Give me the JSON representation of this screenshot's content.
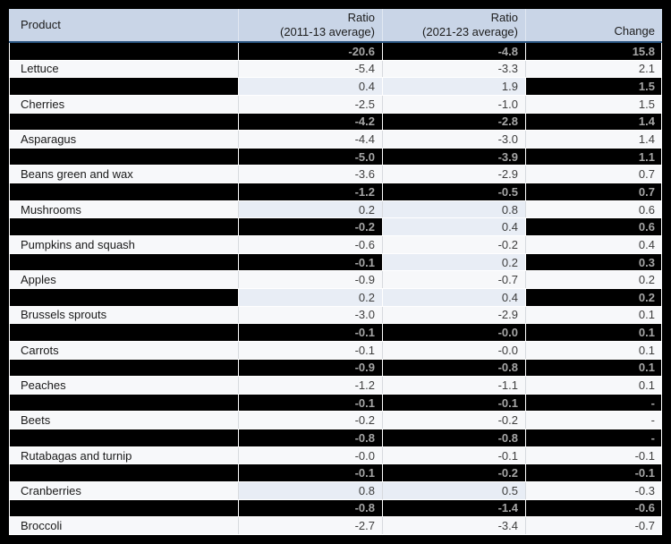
{
  "colors": {
    "page_bg": "#000000",
    "header_bg": "#c9d5e7",
    "header_border": "#2a5480",
    "header_text": "#1c1c1c",
    "row_bg": "#f7f8fa",
    "highlight_bg": "#e8edf5",
    "dark_row_bg": "#000000",
    "dark_row_text": "#a6a6a6",
    "text": "#1a1a1a",
    "num_text": "#3e3e3e",
    "separator": "#d7dade"
  },
  "header": {
    "product_label": "Product",
    "ratio1_label": "Ratio",
    "ratio1_sub": "(2011-13 average)",
    "ratio2_label": "Ratio",
    "ratio2_sub": "(2021-23 average)",
    "change_label": "Change"
  },
  "chart_data": {
    "type": "table",
    "columns": [
      "Product",
      "Ratio (2011-13 average)",
      "Ratio (2021-23 average)",
      "Change"
    ],
    "notes": "Rows with empty product are blacked-out/redacted rows; positive ratio values have a light-blue cell highlight",
    "rows": [
      {
        "product": "",
        "redacted": true,
        "ratio_2011_13": "-20.6",
        "ratio_2021_23": "-4.8",
        "change": "15.8"
      },
      {
        "product": "Lettuce",
        "redacted": false,
        "ratio_2011_13": "-5.4",
        "ratio_2021_23": "-3.3",
        "change": "2.1"
      },
      {
        "product": "",
        "redacted": true,
        "ratio_2011_13": "0.4",
        "ratio_2021_23": "1.9",
        "change": "1.5"
      },
      {
        "product": "Cherries",
        "redacted": false,
        "ratio_2011_13": "-2.5",
        "ratio_2021_23": "-1.0",
        "change": "1.5"
      },
      {
        "product": "",
        "redacted": true,
        "ratio_2011_13": "-4.2",
        "ratio_2021_23": "-2.8",
        "change": "1.4"
      },
      {
        "product": "Asparagus",
        "redacted": false,
        "ratio_2011_13": "-4.4",
        "ratio_2021_23": "-3.0",
        "change": "1.4"
      },
      {
        "product": "",
        "redacted": true,
        "ratio_2011_13": "-5.0",
        "ratio_2021_23": "-3.9",
        "change": "1.1"
      },
      {
        "product": "Beans green and wax",
        "redacted": false,
        "ratio_2011_13": "-3.6",
        "ratio_2021_23": "-2.9",
        "change": "0.7"
      },
      {
        "product": "",
        "redacted": true,
        "ratio_2011_13": "-1.2",
        "ratio_2021_23": "-0.5",
        "change": "0.7"
      },
      {
        "product": "Mushrooms",
        "redacted": false,
        "ratio_2011_13": "0.2",
        "ratio_2021_23": "0.8",
        "change": "0.6"
      },
      {
        "product": "",
        "redacted": true,
        "ratio_2011_13": "-0.2",
        "ratio_2021_23": "0.4",
        "change": "0.6"
      },
      {
        "product": "Pumpkins and squash",
        "redacted": false,
        "ratio_2011_13": "-0.6",
        "ratio_2021_23": "-0.2",
        "change": "0.4"
      },
      {
        "product": "",
        "redacted": true,
        "ratio_2011_13": "-0.1",
        "ratio_2021_23": "0.2",
        "change": "0.3"
      },
      {
        "product": "Apples",
        "redacted": false,
        "ratio_2011_13": "-0.9",
        "ratio_2021_23": "-0.7",
        "change": "0.2"
      },
      {
        "product": "",
        "redacted": true,
        "ratio_2011_13": "0.2",
        "ratio_2021_23": "0.4",
        "change": "0.2"
      },
      {
        "product": "Brussels sprouts",
        "redacted": false,
        "ratio_2011_13": "-3.0",
        "ratio_2021_23": "-2.9",
        "change": "0.1"
      },
      {
        "product": "",
        "redacted": true,
        "ratio_2011_13": "-0.1",
        "ratio_2021_23": "-0.0",
        "change": "0.1"
      },
      {
        "product": "Carrots",
        "redacted": false,
        "ratio_2011_13": "-0.1",
        "ratio_2021_23": "-0.0",
        "change": "0.1"
      },
      {
        "product": "",
        "redacted": true,
        "ratio_2011_13": "-0.9",
        "ratio_2021_23": "-0.8",
        "change": "0.1"
      },
      {
        "product": "Peaches",
        "redacted": false,
        "ratio_2011_13": "-1.2",
        "ratio_2021_23": "-1.1",
        "change": "0.1"
      },
      {
        "product": "",
        "redacted": true,
        "ratio_2011_13": "-0.1",
        "ratio_2021_23": "-0.1",
        "change": "-"
      },
      {
        "product": "Beets",
        "redacted": false,
        "ratio_2011_13": "-0.2",
        "ratio_2021_23": "-0.2",
        "change": "-"
      },
      {
        "product": "",
        "redacted": true,
        "ratio_2011_13": "-0.8",
        "ratio_2021_23": "-0.8",
        "change": "-"
      },
      {
        "product": "Rutabagas and turnip",
        "redacted": false,
        "ratio_2011_13": "-0.0",
        "ratio_2021_23": "-0.1",
        "change": "-0.1"
      },
      {
        "product": "",
        "redacted": true,
        "ratio_2011_13": "-0.1",
        "ratio_2021_23": "-0.2",
        "change": "-0.1"
      },
      {
        "product": "Cranberries",
        "redacted": false,
        "ratio_2011_13": "0.8",
        "ratio_2021_23": "0.5",
        "change": "-0.3"
      },
      {
        "product": "",
        "redacted": true,
        "ratio_2011_13": "-0.8",
        "ratio_2021_23": "-1.4",
        "change": "-0.6"
      },
      {
        "product": "Broccoli",
        "redacted": false,
        "ratio_2011_13": "-2.7",
        "ratio_2021_23": "-3.4",
        "change": "-0.7"
      }
    ]
  }
}
